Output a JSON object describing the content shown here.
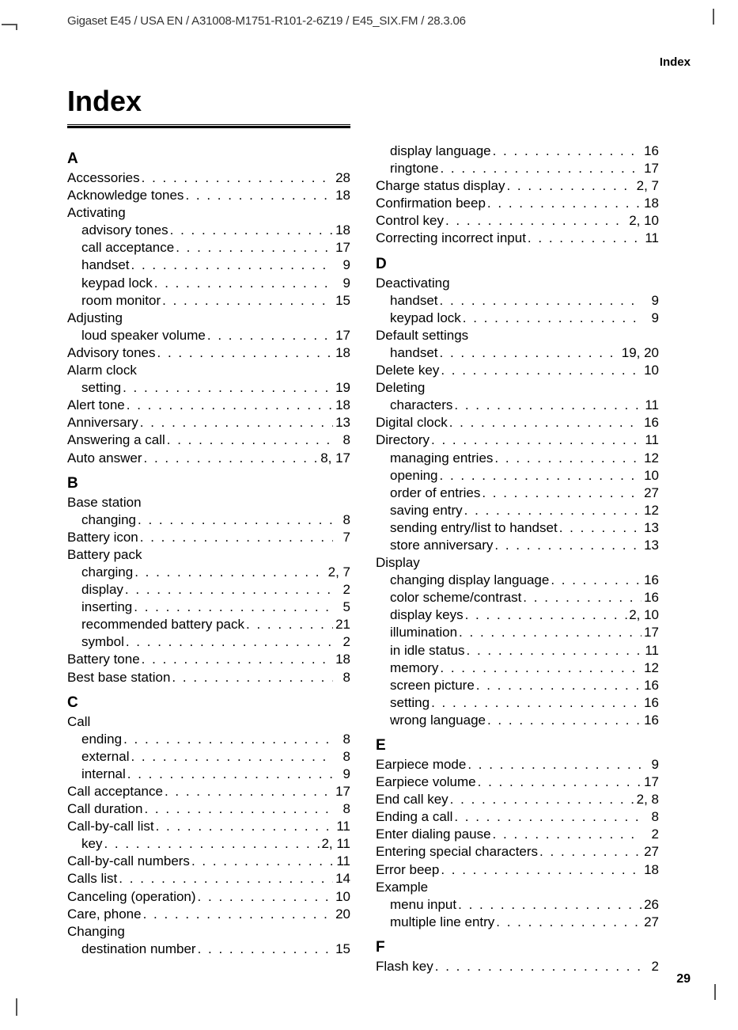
{
  "header": "Gigaset E45 / USA EN / A31008-M1751-R101-2-6Z19  / E45_SIX.FM / 28.3.06",
  "page_label": "Index",
  "index_title": "Index",
  "page_number": "29",
  "col1": [
    {
      "type": "letter",
      "text": "A"
    },
    {
      "type": "entry",
      "label": "Accessories",
      "pages": "28"
    },
    {
      "type": "entry",
      "label": "Acknowledge tones",
      "pages": "18"
    },
    {
      "type": "group",
      "label": "Activating"
    },
    {
      "type": "entry",
      "indent": true,
      "label": "advisory tones",
      "pages": "18"
    },
    {
      "type": "entry",
      "indent": true,
      "label": "call acceptance",
      "pages": "17"
    },
    {
      "type": "entry",
      "indent": true,
      "label": "handset",
      "pages": "9"
    },
    {
      "type": "entry",
      "indent": true,
      "label": "keypad lock",
      "pages": "9"
    },
    {
      "type": "entry",
      "indent": true,
      "label": "room monitor",
      "pages": "15"
    },
    {
      "type": "group",
      "label": "Adjusting"
    },
    {
      "type": "entry",
      "indent": true,
      "label": "loud speaker volume",
      "pages": "17"
    },
    {
      "type": "entry",
      "label": "Advisory tones",
      "pages": "18"
    },
    {
      "type": "group",
      "label": "Alarm clock"
    },
    {
      "type": "entry",
      "indent": true,
      "label": "setting",
      "pages": "19"
    },
    {
      "type": "entry",
      "label": "Alert tone",
      "pages": "18"
    },
    {
      "type": "entry",
      "label": "Anniversary",
      "pages": "13"
    },
    {
      "type": "entry",
      "label": "Answering a call",
      "pages": "8"
    },
    {
      "type": "entry",
      "label": "Auto answer",
      "pages": "8, 17"
    },
    {
      "type": "letter",
      "text": "B"
    },
    {
      "type": "group",
      "label": "Base station"
    },
    {
      "type": "entry",
      "indent": true,
      "label": "changing",
      "pages": "8"
    },
    {
      "type": "entry",
      "label": "Battery icon",
      "pages": "7"
    },
    {
      "type": "group",
      "label": "Battery pack"
    },
    {
      "type": "entry",
      "indent": true,
      "label": "charging",
      "pages": "2, 7"
    },
    {
      "type": "entry",
      "indent": true,
      "label": "display",
      "pages": "2"
    },
    {
      "type": "entry",
      "indent": true,
      "label": "inserting",
      "pages": "5"
    },
    {
      "type": "entry",
      "indent": true,
      "label": "recommended battery pack",
      "pages": "21"
    },
    {
      "type": "entry",
      "indent": true,
      "label": "symbol",
      "pages": "2"
    },
    {
      "type": "entry",
      "label": "Battery tone",
      "pages": "18"
    },
    {
      "type": "entry",
      "label": "Best base station",
      "pages": "8"
    },
    {
      "type": "letter",
      "text": "C"
    },
    {
      "type": "group",
      "label": "Call"
    },
    {
      "type": "entry",
      "indent": true,
      "label": "ending",
      "pages": "8"
    },
    {
      "type": "entry",
      "indent": true,
      "label": "external",
      "pages": "8"
    },
    {
      "type": "entry",
      "indent": true,
      "label": "internal",
      "pages": "9"
    },
    {
      "type": "entry",
      "label": "Call acceptance",
      "pages": "17"
    },
    {
      "type": "entry",
      "label": "Call duration",
      "pages": "8"
    },
    {
      "type": "entry",
      "label": "Call-by-call list",
      "pages": "11"
    },
    {
      "type": "entry",
      "indent": true,
      "label": "key",
      "pages": "2, 11"
    },
    {
      "type": "entry",
      "label": "Call-by-call numbers",
      "pages": "11"
    },
    {
      "type": "entry",
      "label": "Calls list",
      "pages": "14"
    },
    {
      "type": "entry",
      "label": "Canceling (operation)",
      "pages": "10"
    },
    {
      "type": "entry",
      "label": "Care, phone",
      "pages": "20"
    },
    {
      "type": "group",
      "label": "Changing"
    },
    {
      "type": "entry",
      "indent": true,
      "label": "destination number",
      "pages": "15"
    }
  ],
  "col2": [
    {
      "type": "entry",
      "indent": true,
      "label": "display language",
      "pages": "16"
    },
    {
      "type": "entry",
      "indent": true,
      "label": "ringtone",
      "pages": "17"
    },
    {
      "type": "entry",
      "label": "Charge status display",
      "pages": "2, 7"
    },
    {
      "type": "entry",
      "label": "Confirmation beep",
      "pages": "18"
    },
    {
      "type": "entry",
      "label": "Control key",
      "pages": "2, 10"
    },
    {
      "type": "entry",
      "label": "Correcting incorrect input",
      "pages": "11"
    },
    {
      "type": "letter",
      "text": "D"
    },
    {
      "type": "group",
      "label": "Deactivating"
    },
    {
      "type": "entry",
      "indent": true,
      "label": "handset",
      "pages": "9"
    },
    {
      "type": "entry",
      "indent": true,
      "label": "keypad lock",
      "pages": "9"
    },
    {
      "type": "group",
      "label": "Default settings"
    },
    {
      "type": "entry",
      "indent": true,
      "label": "handset",
      "pages": "19, 20"
    },
    {
      "type": "entry",
      "label": "Delete key",
      "pages": "10"
    },
    {
      "type": "group",
      "label": "Deleting"
    },
    {
      "type": "entry",
      "indent": true,
      "label": "characters",
      "pages": "11"
    },
    {
      "type": "entry",
      "label": "Digital clock",
      "pages": "16"
    },
    {
      "type": "entry",
      "label": "Directory",
      "pages": "11"
    },
    {
      "type": "entry",
      "indent": true,
      "label": "managing entries",
      "pages": "12"
    },
    {
      "type": "entry",
      "indent": true,
      "label": "opening",
      "pages": "10"
    },
    {
      "type": "entry",
      "indent": true,
      "label": "order of entries",
      "pages": "27"
    },
    {
      "type": "entry",
      "indent": true,
      "label": "saving entry",
      "pages": "12"
    },
    {
      "type": "entry",
      "indent": true,
      "label": "sending entry/list to handset",
      "pages": "13"
    },
    {
      "type": "entry",
      "indent": true,
      "label": "store anniversary",
      "pages": "13"
    },
    {
      "type": "group",
      "label": "Display"
    },
    {
      "type": "entry",
      "indent": true,
      "label": "changing display language",
      "pages": "16"
    },
    {
      "type": "entry",
      "indent": true,
      "label": "color scheme/contrast",
      "pages": "16"
    },
    {
      "type": "entry",
      "indent": true,
      "label": "display keys",
      "pages": "2, 10"
    },
    {
      "type": "entry",
      "indent": true,
      "label": "illumination",
      "pages": "17"
    },
    {
      "type": "entry",
      "indent": true,
      "label": "in idle status",
      "pages": "11"
    },
    {
      "type": "entry",
      "indent": true,
      "label": "memory",
      "pages": "12"
    },
    {
      "type": "entry",
      "indent": true,
      "label": "screen picture",
      "pages": "16"
    },
    {
      "type": "entry",
      "indent": true,
      "label": "setting",
      "pages": "16"
    },
    {
      "type": "entry",
      "indent": true,
      "label": "wrong language",
      "pages": "16"
    },
    {
      "type": "letter",
      "text": "E"
    },
    {
      "type": "entry",
      "label": "Earpiece mode",
      "pages": "9"
    },
    {
      "type": "entry",
      "label": "Earpiece volume",
      "pages": "17"
    },
    {
      "type": "entry",
      "label": "End call key",
      "pages": "2, 8"
    },
    {
      "type": "entry",
      "label": "Ending a call",
      "pages": "8"
    },
    {
      "type": "entry",
      "label": "Enter dialing pause",
      "pages": "2"
    },
    {
      "type": "entry",
      "label": "Entering special characters",
      "pages": "27"
    },
    {
      "type": "entry",
      "label": "Error beep",
      "pages": "18"
    },
    {
      "type": "group",
      "label": "Example"
    },
    {
      "type": "entry",
      "indent": true,
      "label": "menu input",
      "pages": "26"
    },
    {
      "type": "entry",
      "indent": true,
      "label": "multiple line entry",
      "pages": "27"
    },
    {
      "type": "letter",
      "text": "F"
    },
    {
      "type": "entry",
      "label": "Flash key",
      "pages": "2"
    }
  ]
}
